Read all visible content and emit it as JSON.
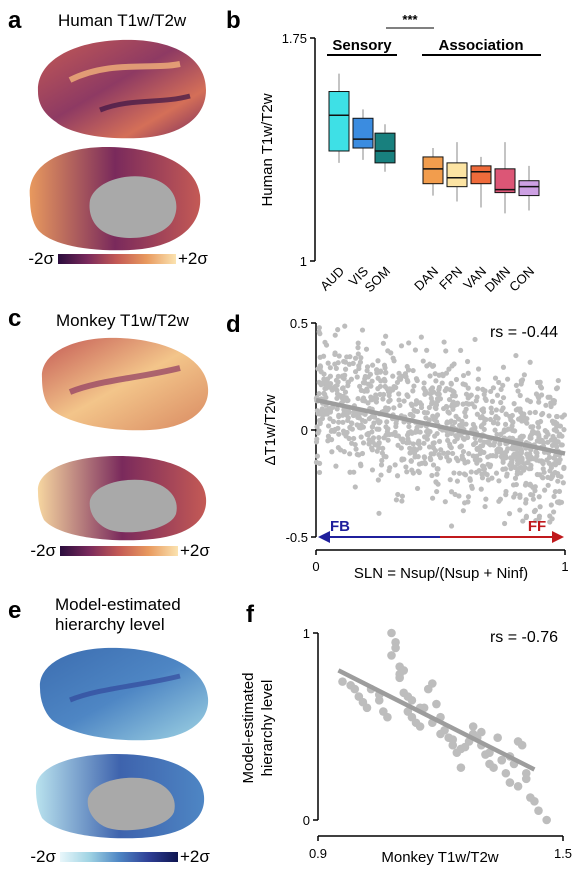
{
  "panels": {
    "a": {
      "letter": "a",
      "title": "Human T1w/T2w",
      "cbar_low": "-2σ",
      "cbar_high": "+2σ",
      "cbar_colors": [
        "#2b0d3d",
        "#7a2a5c",
        "#c45a55",
        "#e8995e",
        "#fbe3b0"
      ]
    },
    "b": {
      "letter": "b"
    },
    "c": {
      "letter": "c",
      "title": "Monkey T1w/T2w",
      "cbar_low": "-2σ",
      "cbar_high": "+2σ",
      "cbar_colors": [
        "#2b0d3d",
        "#7a2a5c",
        "#c45a55",
        "#e8995e",
        "#fbe3b0"
      ]
    },
    "d": {
      "letter": "d",
      "rs_text": "rs = -0.44",
      "fb_label": "FB",
      "ff_label": "FF",
      "fb_color": "#1f1f9c",
      "ff_color": "#c0191c"
    },
    "e": {
      "letter": "e",
      "title_line1": "Model-estimated",
      "title_line2": "hierarchy level",
      "cbar_low": "-2σ",
      "cbar_high": "+2σ",
      "cbar_colors": [
        "#e9f7fb",
        "#9fd3e3",
        "#4e86c4",
        "#2f3f96",
        "#0e1550"
      ]
    },
    "f": {
      "letter": "f",
      "rs_text": "rs = -0.76"
    }
  },
  "chart_data": [
    {
      "type": "box",
      "panel": "b",
      "ylabel": "Human T1w/T2w",
      "ylim": [
        1,
        1.75
      ],
      "yticks": [
        "1",
        "1.75"
      ],
      "groups": [
        {
          "label": "Sensory"
        },
        {
          "label": "Association"
        }
      ],
      "significance": "***",
      "categories": [
        "AUD",
        "VIS",
        "SOM",
        "DAN",
        "FPN",
        "VAN",
        "DMN",
        "CON"
      ],
      "colors": [
        "#3ee0e6",
        "#3b8ce0",
        "#18807e",
        "#f29d4d",
        "#fce4a3",
        "#ef6b3b",
        "#dc5676",
        "#cda0e3"
      ],
      "boxes": [
        {
          "min": 1.33,
          "q1": 1.37,
          "median": 1.49,
          "q3": 1.57,
          "max": 1.63
        },
        {
          "min": 1.34,
          "q1": 1.38,
          "median": 1.41,
          "q3": 1.48,
          "max": 1.51
        },
        {
          "min": 1.3,
          "q1": 1.33,
          "median": 1.37,
          "q3": 1.43,
          "max": 1.46
        },
        {
          "min": 1.22,
          "q1": 1.26,
          "median": 1.31,
          "q3": 1.35,
          "max": 1.38
        },
        {
          "min": 1.2,
          "q1": 1.25,
          "median": 1.28,
          "q3": 1.33,
          "max": 1.4
        },
        {
          "min": 1.18,
          "q1": 1.26,
          "median": 1.3,
          "q3": 1.32,
          "max": 1.35
        },
        {
          "min": 1.16,
          "q1": 1.23,
          "median": 1.24,
          "q3": 1.31,
          "max": 1.4
        },
        {
          "min": 1.17,
          "q1": 1.22,
          "median": 1.25,
          "q3": 1.27,
          "max": 1.32
        }
      ]
    },
    {
      "type": "scatter",
      "panel": "d",
      "xlabel": "SLN = Nsup/(Nsup + Ninf)",
      "ylabel": "ΔT1w/T2w",
      "xlim": [
        0,
        1
      ],
      "ylim": [
        -0.5,
        0.5
      ],
      "xticks": [
        "0",
        "1"
      ],
      "yticks": [
        "0.5",
        "0",
        "-0.5"
      ],
      "fit": {
        "x": [
          0,
          1
        ],
        "y": [
          0.14,
          -0.11
        ]
      },
      "n_points": 1100,
      "point_color": "#bdbdbd",
      "line_color": "#9d9d9d"
    },
    {
      "type": "scatter",
      "panel": "f",
      "xlabel": "Monkey T1w/T2w",
      "ylabel": "Model-estimated hierarchy level",
      "xlim": [
        0.9,
        1.5
      ],
      "ylim": [
        0,
        1
      ],
      "xticks": [
        "0.9",
        "1.5"
      ],
      "yticks": [
        "1",
        "0"
      ],
      "fit": {
        "x": [
          0.95,
          1.43
        ],
        "y": [
          0.8,
          0.27
        ]
      },
      "x": [
        0.96,
        0.98,
        0.99,
        1.0,
        1.01,
        1.02,
        1.03,
        1.05,
        1.06,
        1.07,
        1.08,
        1.09,
        1.1,
        1.1,
        1.11,
        1.12,
        1.13,
        1.14,
        1.15,
        1.16,
        1.17,
        1.18,
        1.19,
        1.2,
        1.21,
        1.22,
        1.23,
        1.24,
        1.25,
        1.26,
        1.27,
        1.28,
        1.29,
        1.3,
        1.31,
        1.32,
        1.33,
        1.34,
        1.35,
        1.36,
        1.37,
        1.38,
        1.39,
        1.4,
        1.41,
        1.42,
        1.43,
        1.44,
        1.46,
        1.08,
        1.09,
        1.1,
        1.12,
        1.15,
        1.18,
        1.2,
        1.25,
        1.28,
        1.32,
        1.35,
        1.39,
        1.41,
        1.11,
        1.13,
        1.05,
        1.23,
        1.3,
        1.37
      ],
      "y": [
        0.74,
        0.72,
        0.7,
        0.66,
        0.63,
        0.6,
        0.7,
        0.64,
        0.58,
        0.55,
        1.0,
        0.95,
        0.82,
        0.76,
        0.68,
        0.58,
        0.55,
        0.52,
        0.5,
        0.6,
        0.7,
        0.73,
        0.62,
        0.46,
        0.48,
        0.44,
        0.4,
        0.36,
        0.38,
        0.39,
        0.42,
        0.5,
        0.44,
        0.4,
        0.35,
        0.3,
        0.28,
        0.44,
        0.32,
        0.25,
        0.2,
        0.3,
        0.42,
        0.4,
        0.25,
        0.12,
        0.1,
        0.05,
        0.0,
        0.88,
        0.92,
        0.78,
        0.66,
        0.6,
        0.52,
        0.55,
        0.28,
        0.46,
        0.36,
        0.32,
        0.18,
        0.22,
        0.8,
        0.64,
        0.67,
        0.43,
        0.47,
        0.34
      ],
      "point_color": "#bdbdbd",
      "line_color": "#9d9d9d"
    }
  ]
}
